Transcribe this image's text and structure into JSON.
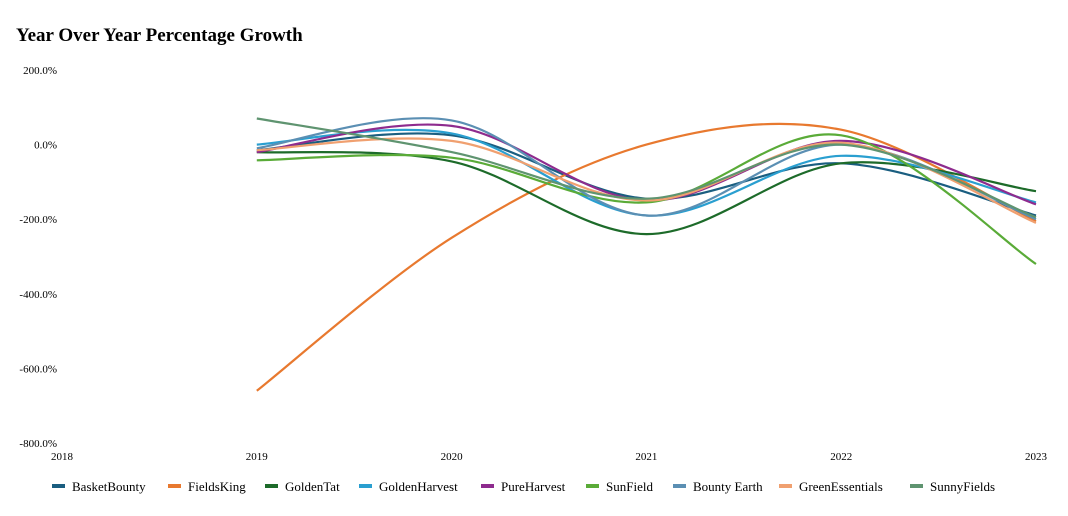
{
  "chart_data": {
    "type": "line",
    "title": "Year Over Year Percentage Growth",
    "xlabel": "",
    "ylabel": "",
    "x": [
      2019,
      2020,
      2021,
      2022,
      2023
    ],
    "x_ticks": [
      "2018",
      "2019",
      "2020",
      "2021",
      "2022",
      "2023"
    ],
    "y_ticks": [
      "200.0%",
      "0.0%",
      "-200.0%",
      "-400.0%",
      "-600.0%",
      "-800.0%"
    ],
    "ylim": [
      -800,
      200
    ],
    "xlim": [
      2018,
      2023
    ],
    "grid": false,
    "legend_position": "bottom",
    "series": [
      {
        "name": "BasketBounty",
        "color": "#1a5e80",
        "values": [
          -15,
          25,
          -145,
          -50,
          -190
        ]
      },
      {
        "name": "FieldsKing",
        "color": "#e8792f",
        "values": [
          -660,
          -250,
          0,
          40,
          -205
        ]
      },
      {
        "name": "GoldenTat",
        "color": "#1d6b2a",
        "values": [
          -20,
          -45,
          -240,
          -50,
          -125
        ]
      },
      {
        "name": "GoldenHarvest",
        "color": "#2a9fd0",
        "values": [
          0,
          30,
          -190,
          -30,
          -155
        ]
      },
      {
        "name": "PureHarvest",
        "color": "#8e2b8e",
        "values": [
          -20,
          50,
          -150,
          10,
          -160
        ]
      },
      {
        "name": "SunField",
        "color": "#5aab38",
        "values": [
          -42,
          -35,
          -155,
          25,
          -320
        ]
      },
      {
        "name": "Bounty Earth",
        "color": "#5b8fb3",
        "values": [
          -10,
          65,
          -190,
          0,
          -200
        ]
      },
      {
        "name": "GreenEssentials",
        "color": "#f0a070",
        "values": [
          -15,
          10,
          -150,
          5,
          -210
        ]
      },
      {
        "name": "SunnyFields",
        "color": "#5f9470",
        "values": [
          70,
          -20,
          -145,
          0,
          -195
        ]
      }
    ]
  }
}
